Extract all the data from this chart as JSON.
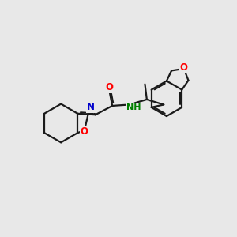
{
  "background_color": "#e8e8e8",
  "bond_color": "#1a1a1a",
  "bond_width": 1.6,
  "atom_colors": {
    "O": "#ff0000",
    "N": "#0000cc",
    "NH": "#008000",
    "C": "#1a1a1a"
  },
  "figsize": [
    3.0,
    3.0
  ],
  "dpi": 100
}
